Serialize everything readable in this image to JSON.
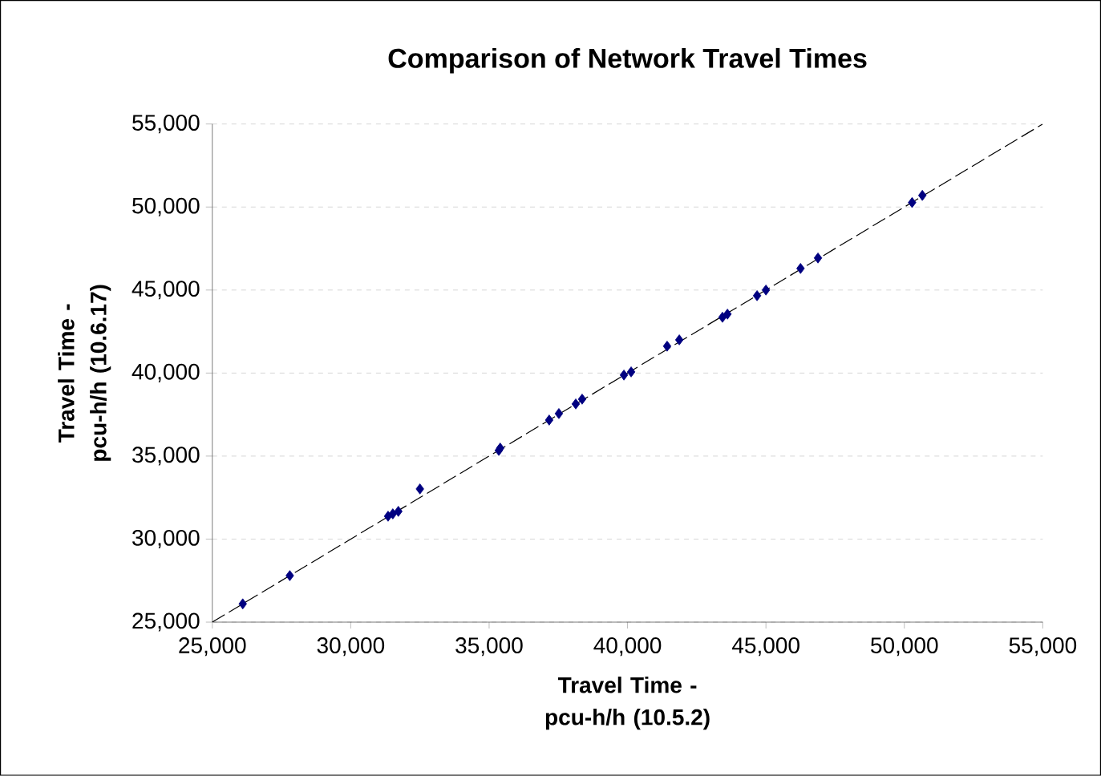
{
  "chart_data": {
    "type": "scatter",
    "title": "Comparison of Network Travel Times",
    "xlabel": "Travel Time - pcu-h/h (10.5.2)",
    "ylabel": "Travel Time - pcu-h/h (10.6.17)",
    "xlim": [
      25000,
      55000
    ],
    "ylim": [
      25000,
      55000
    ],
    "xticks": [
      {
        "value": 25000,
        "label": "25,000"
      },
      {
        "value": 30000,
        "label": "30,000"
      },
      {
        "value": 35000,
        "label": "35,000"
      },
      {
        "value": 40000,
        "label": "40,000"
      },
      {
        "value": 45000,
        "label": "45,000"
      },
      {
        "value": 50000,
        "label": "50,000"
      },
      {
        "value": 55000,
        "label": "55,000"
      }
    ],
    "yticks": [
      {
        "value": 25000,
        "label": "25,000"
      },
      {
        "value": 30000,
        "label": "30,000"
      },
      {
        "value": 35000,
        "label": "35,000"
      },
      {
        "value": 40000,
        "label": "40,000"
      },
      {
        "value": 45000,
        "label": "45,000"
      },
      {
        "value": 50000,
        "label": "50,000"
      },
      {
        "value": 55000,
        "label": "55,000"
      }
    ],
    "grid": "y",
    "marker": "diamond",
    "series": [
      {
        "color": "#000080",
        "x": [
          26100,
          27800,
          31350,
          31520,
          31720,
          32500,
          35350,
          35400,
          37170,
          37520,
          38130,
          38360,
          39870,
          40130,
          41430,
          41870,
          43430,
          43610,
          44680,
          45000,
          46250,
          46880,
          50280,
          50650
        ],
        "values": [
          26100,
          27800,
          31380,
          31520,
          31670,
          33020,
          35340,
          35480,
          37170,
          37560,
          38140,
          38430,
          39880,
          40070,
          41620,
          42000,
          43360,
          43550,
          44660,
          45000,
          46300,
          46930,
          50270,
          50700
        ]
      },
      {
        "type": "line",
        "color": "#000000",
        "line_style": "dashed",
        "marker": "none",
        "x": [
          25000,
          55000
        ],
        "values": [
          25000,
          55000
        ]
      }
    ]
  }
}
